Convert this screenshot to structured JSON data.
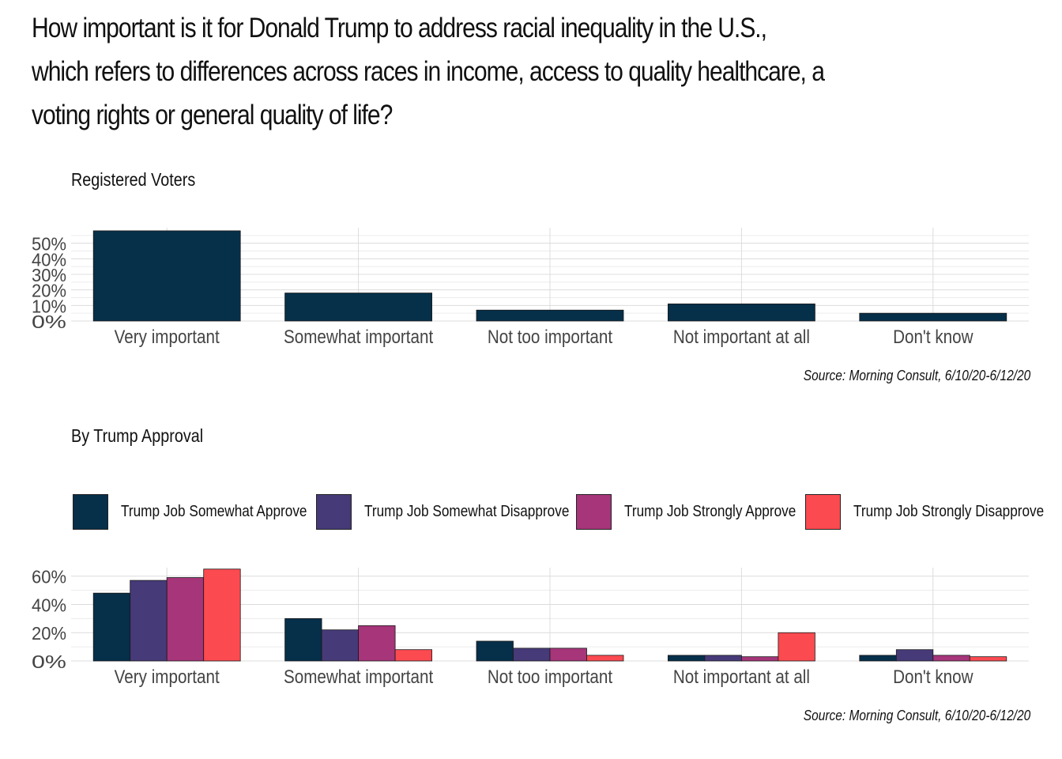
{
  "title": {
    "line1": "How important is it for Donald Trump to address racial inequality in the U.S.,",
    "line2": "which refers to differences across races in income, access to quality healthcare, a",
    "line3": "voting rights or general quality of life?"
  },
  "sections": {
    "registered_voters": {
      "title": "Registered Voters",
      "source": "Source: Morning Consult, 6/10/20-6/12/20"
    },
    "by_trump_approval": {
      "title": "By Trump Approval",
      "source": "Source: Morning Consult, 6/10/20-6/12/20"
    }
  },
  "legend": {
    "items": [
      {
        "label": "Trump Job Somewhat Approve",
        "color": "#062f4a"
      },
      {
        "label": "Trump Job Somewhat Disapprove",
        "color": "#463a78"
      },
      {
        "label": "Trump Job Strongly Approve",
        "color": "#a6357a"
      },
      {
        "label": "Trump Job Strongly Disapprove",
        "color": "#fb4a50"
      }
    ]
  },
  "chart_data": [
    {
      "type": "bar",
      "categories": [
        "Very important",
        "Somewhat important",
        "Not too important",
        "Not important at all",
        "Don't know"
      ],
      "values": [
        58,
        18,
        7,
        11,
        5
      ],
      "ylim": [
        0,
        60
      ],
      "yticks": [
        0,
        10,
        20,
        30,
        40,
        50
      ],
      "ytick_labels": [
        "0%",
        "10%",
        "20%",
        "30%",
        "40%",
        "50%"
      ],
      "color": "#062f4a",
      "grid": true
    },
    {
      "type": "bar",
      "categories": [
        "Very important",
        "Somewhat important",
        "Not too important",
        "Not important at all",
        "Don't know"
      ],
      "series": [
        {
          "name": "Trump Job Somewhat Approve",
          "values": [
            48,
            30,
            14,
            4,
            4
          ],
          "color": "#062f4a"
        },
        {
          "name": "Trump Job Somewhat Disapprove",
          "values": [
            57,
            22,
            9,
            4,
            8
          ],
          "color": "#463a78"
        },
        {
          "name": "Trump Job Strongly Approve",
          "values": [
            59,
            25,
            9,
            3,
            4
          ],
          "color": "#a6357a"
        },
        {
          "name": "Trump Job Strongly Disapprove",
          "values": [
            65,
            8,
            4,
            20,
            3
          ],
          "color": "#fb4a50"
        }
      ],
      "ylim": [
        0,
        66
      ],
      "yticks": [
        0,
        20,
        40,
        60
      ],
      "ytick_labels": [
        "0%",
        "20%",
        "40%",
        "60%"
      ],
      "legend_position": "top",
      "grid": true
    }
  ]
}
